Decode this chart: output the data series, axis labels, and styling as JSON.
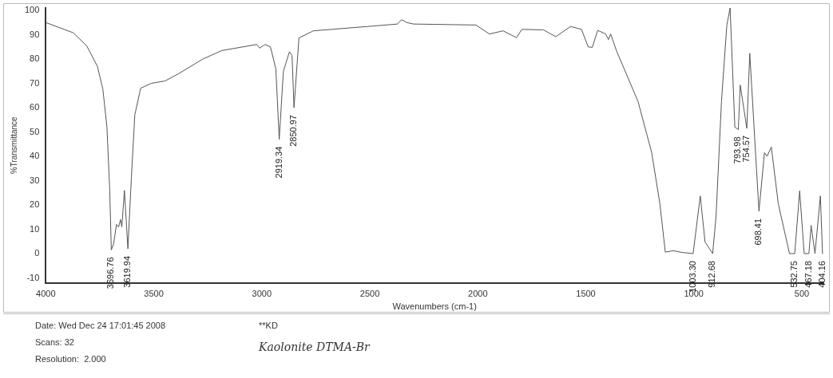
{
  "chart_data": {
    "type": "line",
    "xlabel": "Wavenumbers (cm-1)",
    "ylabel": "%Transmittance",
    "color": "#555555",
    "marker": "none",
    "grid": false,
    "legend": false,
    "xlim": [
      4000,
      400
    ],
    "xticks": [
      4000,
      3500,
      3000,
      2500,
      2000,
      1500,
      1000,
      500
    ],
    "ylim": [
      -12,
      101
    ],
    "yticks": [
      -10,
      0,
      10,
      20,
      30,
      40,
      50,
      60,
      70,
      80,
      90,
      100
    ],
    "x": [
      4000,
      3873,
      3811,
      3761,
      3736,
      3717,
      3704,
      3696.76,
      3686,
      3673,
      3663,
      3654,
      3648,
      3636,
      3619.94,
      3604,
      3588,
      3561,
      3512,
      3448,
      3385,
      3273,
      3185,
      3023,
      3010,
      2985,
      2960,
      2935,
      2919.34,
      2900,
      2872,
      2860,
      2850.97,
      2828,
      2761,
      2509,
      2372,
      2353,
      2328,
      2297,
      2009,
      1946,
      1883,
      1821,
      1796,
      1696,
      1639,
      1570,
      1520,
      1489,
      1470,
      1445,
      1408,
      1395,
      1385,
      1358,
      1258,
      1195,
      1157,
      1132,
      1095,
      1057,
      1003.3,
      970,
      948,
      912.68,
      897,
      872,
      847,
      832,
      810,
      793.98,
      785,
      754.57,
      741,
      698.41,
      673,
      661,
      641,
      609,
      557,
      532.75,
      510,
      489,
      467.18,
      457,
      439,
      414,
      404.16
    ],
    "values": [
      95,
      90.8,
      85.5,
      77,
      67.7,
      52,
      26,
      1.5,
      4,
      12,
      11,
      14,
      11,
      26,
      2,
      31,
      57,
      68,
      70,
      71,
      74,
      80,
      83.5,
      86,
      84.5,
      86,
      85,
      76,
      47,
      75,
      83,
      81.5,
      60,
      88.7,
      91.6,
      93.4,
      94.4,
      96.2,
      95,
      94.4,
      94,
      90.3,
      91.6,
      88.8,
      92.2,
      92,
      89.2,
      93.4,
      92.2,
      85,
      84.8,
      91.8,
      90.3,
      88,
      90.3,
      83.4,
      62.5,
      41.5,
      20.5,
      0.6,
      1.2,
      0.5,
      0,
      23.7,
      4.8,
      0,
      15.4,
      62.5,
      94,
      101,
      52,
      51,
      69.3,
      51.5,
      82.4,
      17.4,
      41.5,
      40,
      43.8,
      20.5,
      0,
      0,
      25.8,
      0,
      0,
      11.6,
      0,
      23.7,
      0
    ],
    "annotations": [
      {
        "text": "3696.76",
        "x": 3696.76,
        "y": 1.5
      },
      {
        "text": "3619.94",
        "x": 3619.94,
        "y": 2
      },
      {
        "text": "2919.34",
        "x": 2919.34,
        "y": 47
      },
      {
        "text": "2850.97",
        "x": 2850.97,
        "y": 60
      },
      {
        "text": "1003.30",
        "x": 1003.3,
        "y": 0
      },
      {
        "text": "912.68",
        "x": 912.68,
        "y": 0
      },
      {
        "text": "793.98",
        "x": 793.98,
        "y": 51
      },
      {
        "text": "754.57",
        "x": 754.57,
        "y": 51.5
      },
      {
        "text": "698.41",
        "x": 698.41,
        "y": 17.4
      },
      {
        "text": "532.75",
        "x": 532.75,
        "y": 0
      },
      {
        "text": "467.18",
        "x": 467.18,
        "y": 0
      },
      {
        "text": "404.16",
        "x": 404.16,
        "y": 0
      },
      "Date: Wed Dec 24 17:01:45 2008",
      "Scans: 32",
      "Resolution:  2.000",
      "**KD",
      "Kaolonite DTMA-Br"
    ]
  }
}
